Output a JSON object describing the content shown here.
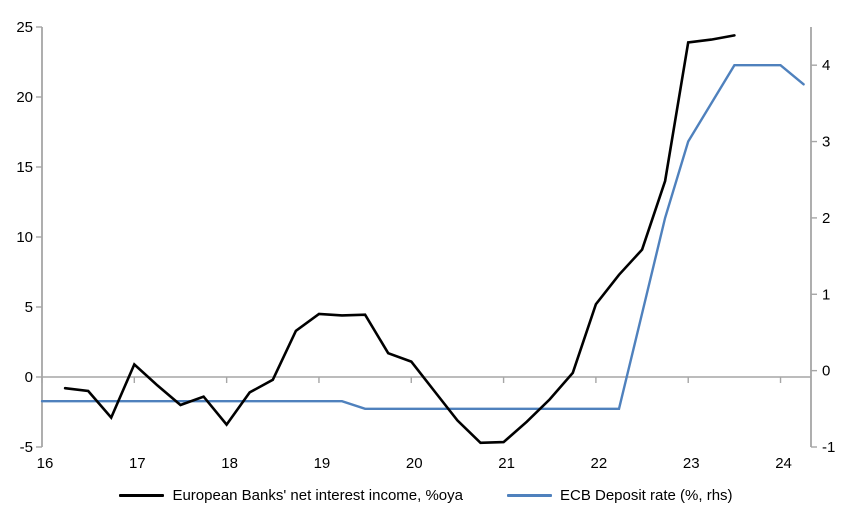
{
  "chart_data": {
    "type": "line",
    "legend_position": "bottom",
    "grid": false,
    "zero_line": true,
    "axis_color": "#A6A6A6",
    "x_axis": {
      "min": 2016,
      "max": 2024.33,
      "tick_values": [
        2016,
        2017,
        2018,
        2019,
        2020,
        2021,
        2022,
        2023,
        2024
      ],
      "tick_labels": [
        "16",
        "17",
        "18",
        "19",
        "20",
        "21",
        "22",
        "23",
        "24"
      ]
    },
    "left_axis": {
      "min": -5,
      "max": 25,
      "ticks": [
        -5,
        0,
        5,
        10,
        15,
        20,
        25
      ]
    },
    "right_axis": {
      "min": -1,
      "max": 4.5,
      "ticks": [
        -1,
        0,
        1,
        2,
        3,
        4
      ]
    },
    "series": [
      {
        "name": "European Banks' net interest income, %oya",
        "axis": "left_axis",
        "color": "#000000",
        "width": 2.6,
        "x": [
          2016.25,
          2016.5,
          2016.75,
          2017.0,
          2017.25,
          2017.5,
          2017.75,
          2018.0,
          2018.25,
          2018.5,
          2018.75,
          2019.0,
          2019.25,
          2019.5,
          2019.75,
          2020.0,
          2020.25,
          2020.5,
          2020.75,
          2021.0,
          2021.25,
          2021.5,
          2021.75,
          2022.0,
          2022.25,
          2022.5,
          2022.75,
          2023.0,
          2023.25,
          2023.5
        ],
        "values": [
          -0.8,
          -1.0,
          -2.9,
          0.9,
          -0.6,
          -2.0,
          -1.4,
          -3.4,
          -1.1,
          -0.2,
          3.3,
          4.5,
          4.4,
          4.45,
          1.7,
          1.1,
          -1.0,
          -3.1,
          -4.7,
          -4.65,
          -3.2,
          -1.6,
          0.3,
          5.2,
          7.3,
          9.1,
          14.0,
          23.9,
          24.1,
          24.4
        ]
      },
      {
        "name": "ECB Deposit rate (%, rhs)",
        "axis": "right_axis",
        "color": "#4F81BD",
        "width": 2.4,
        "x": [
          2016.0,
          2016.25,
          2016.5,
          2016.75,
          2017.0,
          2017.25,
          2017.5,
          2017.75,
          2018.0,
          2018.25,
          2018.5,
          2018.75,
          2019.0,
          2019.25,
          2019.5,
          2019.75,
          2020.0,
          2020.25,
          2020.5,
          2020.75,
          2021.0,
          2021.25,
          2021.5,
          2021.75,
          2022.0,
          2022.25,
          2022.5,
          2022.75,
          2023.0,
          2023.25,
          2023.5,
          2023.75,
          2024.0,
          2024.25
        ],
        "values": [
          -0.4,
          -0.4,
          -0.4,
          -0.4,
          -0.4,
          -0.4,
          -0.4,
          -0.4,
          -0.4,
          -0.4,
          -0.4,
          -0.4,
          -0.4,
          -0.4,
          -0.5,
          -0.5,
          -0.5,
          -0.5,
          -0.5,
          -0.5,
          -0.5,
          -0.5,
          -0.5,
          -0.5,
          -0.5,
          -0.5,
          0.75,
          2.0,
          3.0,
          3.5,
          4.0,
          4.0,
          4.0,
          3.75
        ]
      }
    ]
  }
}
